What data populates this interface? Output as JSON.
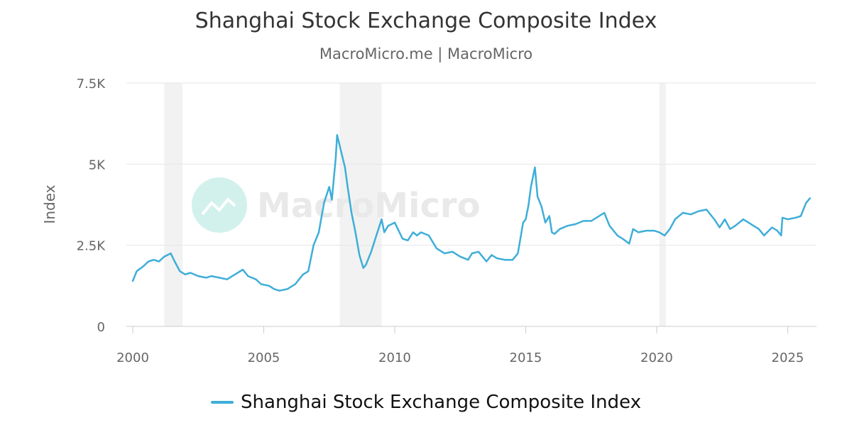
{
  "header": {
    "title": "Shanghai Stock Exchange Composite Index",
    "subtitle": "MacroMicro.me | MacroMicro"
  },
  "watermark": {
    "text": "MacroMicro"
  },
  "legend": {
    "label": "Shanghai Stock Exchange Composite Index"
  },
  "chart_data": {
    "type": "line",
    "ylabel": "Index",
    "xlabel": "",
    "xlim": [
      2000,
      2026.1
    ],
    "ylim": [
      0,
      7500
    ],
    "grid": true,
    "legend_position": "bottom",
    "x_ticks": [
      {
        "value": 2000,
        "label": "2000"
      },
      {
        "value": 2005,
        "label": "2005"
      },
      {
        "value": 2010,
        "label": "2010"
      },
      {
        "value": 2015,
        "label": "2015"
      },
      {
        "value": 2020,
        "label": "2020"
      },
      {
        "value": 2025,
        "label": "2025"
      }
    ],
    "y_ticks": [
      {
        "value": 0,
        "label": "0"
      },
      {
        "value": 2500,
        "label": "2.5K"
      },
      {
        "value": 5000,
        "label": "5K"
      },
      {
        "value": 7500,
        "label": "7.5K"
      }
    ],
    "recession_bands": [
      [
        2001.2,
        2001.9
      ],
      [
        2007.9,
        2009.5
      ],
      [
        2020.1,
        2020.35
      ]
    ],
    "colors": {
      "series": "#3eaed8",
      "band": "#f2f2f2",
      "grid": "#e6e6e6",
      "axis": "#cccccc"
    },
    "series": [
      {
        "name": "Shanghai Stock Exchange Composite Index",
        "x": [
          2000.0,
          2000.15,
          2000.4,
          2000.6,
          2000.8,
          2001.0,
          2001.2,
          2001.45,
          2001.6,
          2001.8,
          2002.0,
          2002.2,
          2002.5,
          2002.8,
          2003.0,
          2003.3,
          2003.6,
          2003.9,
          2004.2,
          2004.4,
          2004.7,
          2004.9,
          2005.2,
          2005.4,
          2005.6,
          2005.9,
          2006.2,
          2006.5,
          2006.7,
          2006.9,
          2007.1,
          2007.3,
          2007.5,
          2007.6,
          2007.75,
          2007.8,
          2007.95,
          2008.1,
          2008.2,
          2008.35,
          2008.5,
          2008.65,
          2008.8,
          2008.9,
          2009.1,
          2009.3,
          2009.5,
          2009.6,
          2009.75,
          2010.0,
          2010.3,
          2010.5,
          2010.7,
          2010.85,
          2011.0,
          2011.3,
          2011.6,
          2011.9,
          2012.2,
          2012.5,
          2012.8,
          2012.95,
          2013.2,
          2013.5,
          2013.7,
          2013.9,
          2014.2,
          2014.5,
          2014.7,
          2014.9,
          2015.0,
          2015.1,
          2015.2,
          2015.35,
          2015.45,
          2015.6,
          2015.75,
          2015.9,
          2016.0,
          2016.1,
          2016.3,
          2016.6,
          2016.9,
          2017.2,
          2017.5,
          2017.8,
          2018.0,
          2018.2,
          2018.5,
          2018.7,
          2018.95,
          2019.1,
          2019.3,
          2019.6,
          2019.9,
          2020.1,
          2020.3,
          2020.5,
          2020.7,
          2021.0,
          2021.3,
          2021.6,
          2021.9,
          2022.2,
          2022.4,
          2022.6,
          2022.8,
          2023.0,
          2023.3,
          2023.6,
          2023.9,
          2024.1,
          2024.4,
          2024.6,
          2024.75,
          2024.8,
          2025.0,
          2025.3,
          2025.5,
          2025.7,
          2025.85
        ],
        "values": [
          1400,
          1700,
          1850,
          2000,
          2050,
          2000,
          2150,
          2250,
          2000,
          1700,
          1600,
          1650,
          1550,
          1500,
          1550,
          1500,
          1450,
          1600,
          1750,
          1550,
          1450,
          1300,
          1250,
          1150,
          1100,
          1150,
          1300,
          1600,
          1700,
          2500,
          2900,
          3800,
          4300,
          3900,
          5200,
          5900,
          5400,
          4900,
          4300,
          3500,
          2900,
          2200,
          1800,
          1900,
          2300,
          2800,
          3300,
          2900,
          3100,
          3200,
          2700,
          2650,
          2900,
          2800,
          2900,
          2800,
          2400,
          2250,
          2300,
          2150,
          2050,
          2250,
          2300,
          2000,
          2200,
          2100,
          2050,
          2050,
          2250,
          3200,
          3300,
          3700,
          4300,
          4900,
          4000,
          3700,
          3200,
          3400,
          2900,
          2850,
          3000,
          3100,
          3150,
          3250,
          3250,
          3400,
          3500,
          3100,
          2800,
          2700,
          2550,
          3000,
          2900,
          2950,
          2950,
          2900,
          2800,
          3000,
          3300,
          3500,
          3450,
          3550,
          3600,
          3300,
          3050,
          3300,
          3000,
          3100,
          3300,
          3150,
          3000,
          2800,
          3050,
          2950,
          2800,
          3350,
          3300,
          3350,
          3400,
          3800,
          3950
        ]
      }
    ]
  }
}
